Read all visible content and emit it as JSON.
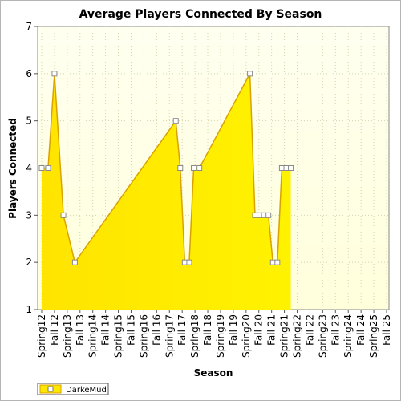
{
  "chart_data": {
    "type": "area",
    "title": "Average Players Connected By Season",
    "xlabel": "Season",
    "ylabel": "Players Connected",
    "ylim": [
      1,
      7
    ],
    "yticks": [
      1,
      2,
      3,
      4,
      5,
      6,
      7
    ],
    "grid": true,
    "legend_position": "bottom-left",
    "tick_labels": [
      "Spring12",
      "Fall 12",
      "Spring13",
      "Fall 13",
      "Spring14",
      "Fall 14",
      "Spring15",
      "Fall 15",
      "Spring16",
      "Fall 16",
      "Spring17",
      "Fall 17",
      "Spring18",
      "Fall 18",
      "Spring19",
      "Fall 19",
      "Spring20",
      "Fall 20",
      "Fall 21",
      "Spring21",
      "Spring22",
      "Fall 22",
      "Spring23",
      "Fall 23",
      "Spring24",
      "Fall 24",
      "Spring25",
      "Fall 25"
    ],
    "series": [
      {
        "name": "DarkeMud",
        "color": "#ffe800",
        "line_color": "#d9a200",
        "x": [
          0,
          0.5,
          1,
          1.7,
          2.6,
          10.5,
          10.85,
          11.2,
          11.55,
          11.9,
          12.35,
          16.3,
          16.7,
          17.05,
          17.4,
          17.75,
          18.1,
          18.45,
          18.8,
          19.15,
          19.5
        ],
        "values": [
          4,
          4,
          6,
          3,
          2,
          5,
          4,
          2,
          2,
          4,
          4,
          6,
          3,
          3,
          3,
          3,
          2,
          2,
          4,
          4,
          4
        ]
      }
    ]
  }
}
